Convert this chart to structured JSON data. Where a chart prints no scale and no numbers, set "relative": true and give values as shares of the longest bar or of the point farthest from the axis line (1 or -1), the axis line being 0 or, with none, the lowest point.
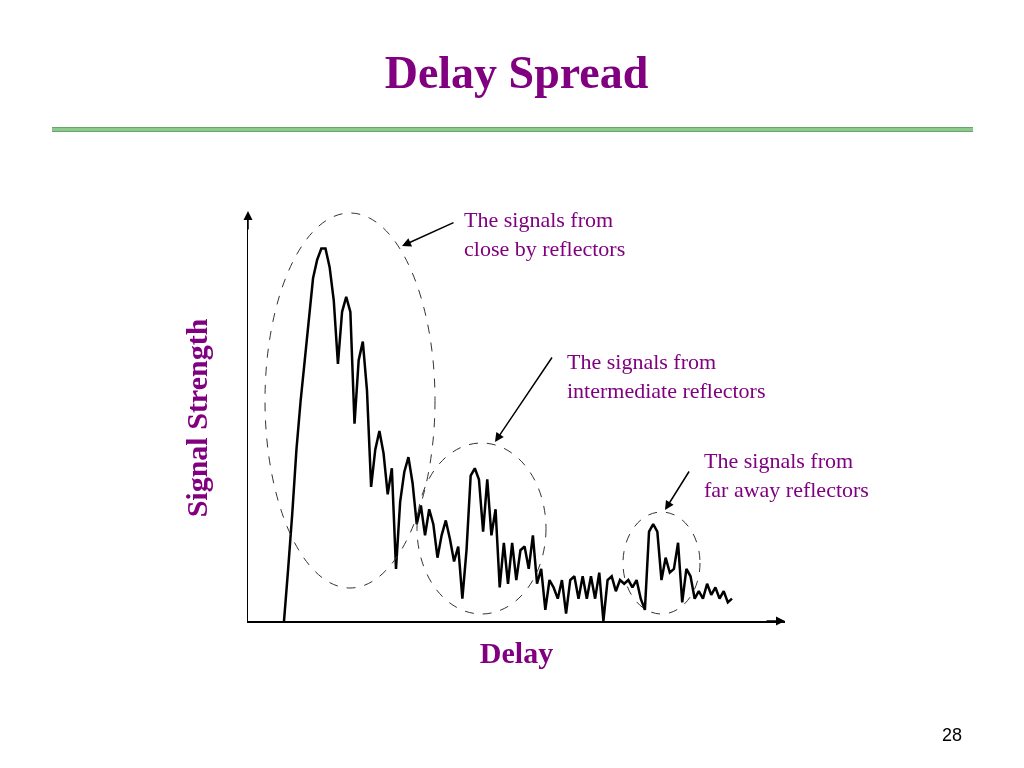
{
  "chart_data": {
    "type": "line",
    "title": "Delay Spread",
    "xlabel": "Delay",
    "ylabel": "Signal Strength",
    "relative": true,
    "color": "#000000",
    "line_style": "solid",
    "grid": false,
    "legend": false,
    "categories": [
      null,
      null,
      null,
      null,
      null,
      null,
      null,
      null,
      null,
      null,
      null,
      null,
      null,
      null,
      null,
      null,
      null,
      null,
      null,
      null,
      null,
      null,
      null,
      null,
      null,
      null,
      null,
      null,
      null,
      null,
      null,
      null,
      null,
      null,
      null,
      null,
      null,
      null,
      null,
      null,
      null,
      null,
      null,
      null,
      null,
      null,
      null,
      null,
      null,
      null,
      null,
      null,
      null,
      null,
      null,
      null,
      null,
      null,
      null,
      null,
      null,
      null,
      null,
      null,
      null,
      null,
      null,
      null,
      null,
      null,
      null,
      null,
      null,
      null,
      null,
      null,
      null,
      null,
      null,
      null,
      null,
      null,
      null,
      null,
      null,
      null,
      null,
      null,
      null,
      null,
      null,
      null,
      null,
      null,
      null,
      null,
      null,
      null,
      null,
      null,
      null,
      null,
      null,
      null,
      null,
      null,
      null,
      null,
      null
    ],
    "values": [
      0,
      0.14,
      0.29,
      0.46,
      0.59,
      0.7,
      0.81,
      0.92,
      0.97,
      1,
      1,
      0.95,
      0.86,
      0.69,
      0.83,
      0.87,
      0.83,
      0.53,
      0.7,
      0.75,
      0.62,
      0.36,
      0.46,
      0.51,
      0.45,
      0.34,
      0.41,
      0.14,
      0.32,
      0.4,
      0.44,
      0.37,
      0.26,
      0.31,
      0.23,
      0.3,
      0.26,
      0.17,
      0.23,
      0.27,
      0.22,
      0.16,
      0.2,
      0.06,
      0.19,
      0.39,
      0.41,
      0.38,
      0.24,
      0.38,
      0.23,
      0.3,
      0.09,
      0.21,
      0.1,
      0.21,
      0.11,
      0.19,
      0.2,
      0.14,
      0.23,
      0.1,
      0.14,
      0.03,
      0.11,
      0.09,
      0.06,
      0.11,
      0.02,
      0.11,
      0.12,
      0.06,
      0.12,
      0.06,
      0.12,
      0.06,
      0.13,
      0.0,
      0.11,
      0.12,
      0.08,
      0.11,
      0.1,
      0.11,
      0.09,
      0.11,
      0.06,
      0.03,
      0.24,
      0.26,
      0.24,
      0.11,
      0.17,
      0.13,
      0.14,
      0.21,
      0.05,
      0.14,
      0.12,
      0.06,
      0.08,
      0.06,
      0.1,
      0.07,
      0.09,
      0.06,
      0.08,
      0.05,
      0.06
    ],
    "annotations": [
      "The signals from\nclose by reflectors",
      "The signals from\nintermediate reflectors",
      "The signals from\nfar away reflectors",
      "28"
    ]
  }
}
